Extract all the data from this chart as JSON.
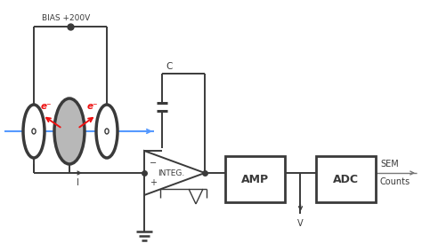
{
  "bg_color": "#ffffff",
  "line_color": "#3a3a3a",
  "beam_color": "#5599ff",
  "electron_color": "#ee1111",
  "bias_label": "BIAS +200V",
  "capacitor_label": "C",
  "integ_label": "INTEG.",
  "amp_label": "AMP",
  "adc_label": "ADC",
  "sem_label": "SEM",
  "counts_label": "Counts",
  "current_label": "I",
  "voltage_label": "V",
  "e_label": "e⁻"
}
